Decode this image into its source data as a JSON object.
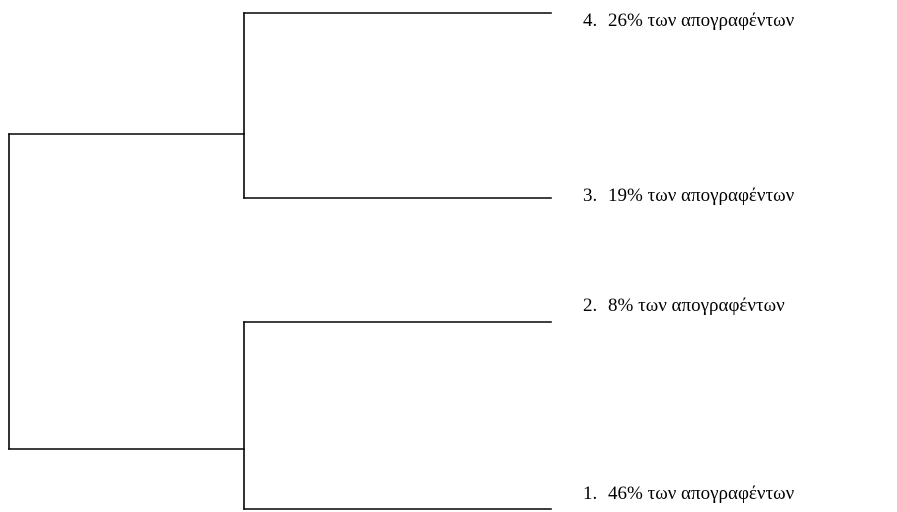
{
  "leaves": [
    {
      "number": "4.",
      "text": "26% των απογραφέντων"
    },
    {
      "number": "3.",
      "text": "19% των απογραφέντων"
    },
    {
      "number": "2.",
      "text": "8% των απογραφέντων"
    },
    {
      "number": "1.",
      "text": "46% των απογραφέντων"
    }
  ],
  "line_color": "#000000"
}
